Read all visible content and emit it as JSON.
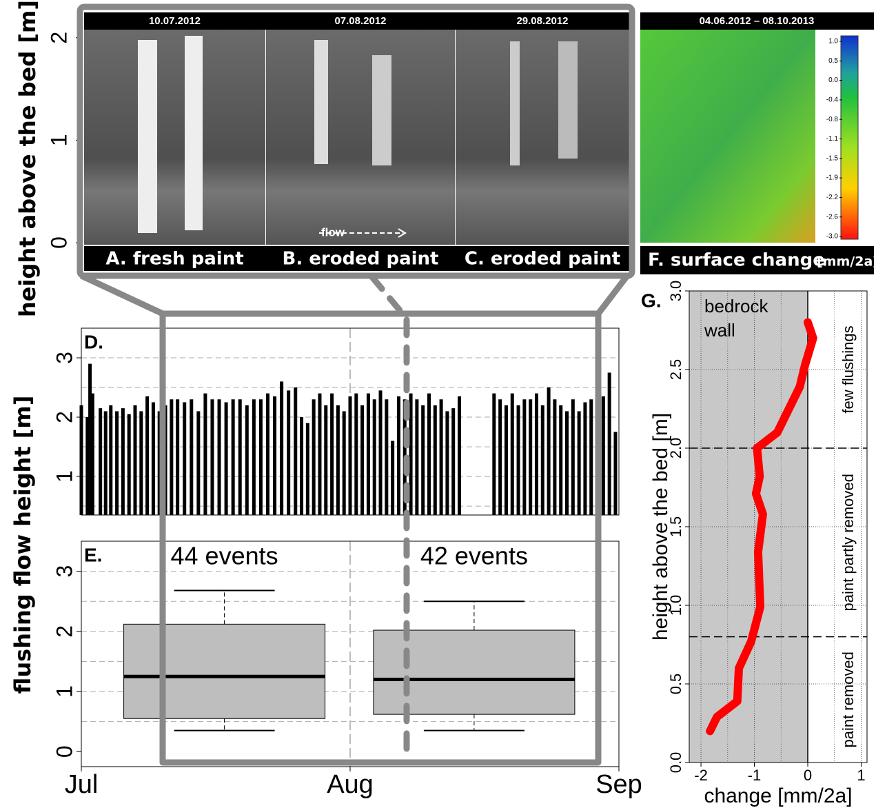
{
  "photos": {
    "ylabel": "height above the bed [m]",
    "ylim": [
      0,
      2.2
    ],
    "yticks": [
      0,
      1,
      2
    ],
    "panels": [
      {
        "date": "10.07.2012",
        "caption": "A. fresh paint"
      },
      {
        "date": "07.08.2012",
        "caption": "B. eroded paint"
      },
      {
        "date": "29.08.2012",
        "caption": "C. eroded paint"
      }
    ],
    "flow_label": "flow",
    "surface": {
      "date": "04.06.2012 – 08.10.2013",
      "caption": "F. surface change",
      "caption_unit": "[mm/2a]",
      "colorbar_ticks": [
        {
          "value": 1.0,
          "label": "1.0"
        },
        0.5,
        {
          "value": 0.0,
          "label": "0.0"
        },
        -0.4,
        -0.8,
        -1.1,
        -1.5,
        -1.9,
        -2.2,
        -2.6,
        {
          "value": -3.0,
          "label": "-3.0"
        }
      ]
    }
  },
  "chart_data": [
    {
      "type": "bar",
      "title": "D.",
      "ylabel": "flushing flow height [m]",
      "color": "#000000",
      "x": [
        0,
        0.7,
        1.0,
        1.3,
        2.2,
        2.8,
        3.4,
        4.1,
        4.8,
        5.5,
        6.2,
        6.9,
        7.6,
        8.3,
        9.0,
        9.7,
        10.4,
        11.1,
        11.9,
        12.7,
        13.5,
        14.3,
        15.1,
        15.9,
        16.7,
        17.5,
        18.3,
        19.1,
        19.9,
        20.7,
        21.5,
        22.3,
        23.1,
        23.9,
        24.7,
        25.4,
        26.1,
        26.8,
        27.5,
        28.2,
        28.9,
        29.6,
        30.3,
        31.0,
        31.7,
        32.4,
        33.1,
        33.8,
        34.5,
        35.2,
        35.9,
        36.6,
        37.3,
        38.0,
        38.7,
        39.4,
        40.1,
        40.8,
        41.5,
        42.2,
        42.9,
        43.6,
        47.6,
        48.3,
        49.0,
        49.7,
        50.4,
        51.1,
        51.8,
        52.5,
        53.2,
        53.9,
        54.6,
        55.3,
        56.0,
        56.7,
        57.4,
        58.1,
        58.8,
        59.5,
        60.2,
        60.9,
        61.6
      ],
      "values": [
        2.2,
        2.0,
        2.9,
        2.4,
        2.15,
        2.1,
        2.2,
        2.1,
        2.15,
        2.05,
        2.2,
        2.1,
        2.35,
        2.25,
        2.1,
        2.2,
        2.3,
        2.3,
        2.25,
        2.3,
        2.1,
        2.4,
        2.3,
        2.3,
        2.25,
        2.3,
        2.3,
        2.2,
        2.3,
        2.3,
        2.4,
        2.35,
        2.6,
        2.45,
        2.5,
        2.0,
        1.9,
        2.3,
        2.4,
        2.2,
        2.4,
        2.2,
        2.1,
        2.35,
        2.4,
        2.2,
        2.4,
        2.3,
        2.45,
        2.3,
        1.6,
        2.35,
        2.3,
        2.4,
        2.3,
        2.2,
        2.4,
        2.2,
        2.3,
        2.1,
        2.15,
        2.35,
        2.4,
        2.3,
        2.2,
        2.4,
        2.2,
        2.3,
        2.3,
        2.4,
        2.2,
        2.5,
        2.3,
        2.2,
        2.1,
        2.3,
        2.1,
        2.25,
        2.3,
        2.2,
        2.35,
        2.75,
        1.75
      ],
      "xlim": [
        0,
        62
      ],
      "ylim": [
        0.35,
        3.5
      ],
      "yticks": [
        1,
        2,
        3
      ],
      "grid_lines": [
        0.5,
        1,
        1.5,
        2,
        2.5,
        3
      ],
      "xgrid": [
        31
      ]
    },
    {
      "type": "box",
      "title": "E.",
      "color": "#bebebe",
      "boxes": [
        {
          "label": "44 events",
          "x": 16.5,
          "whisker_low": 0.35,
          "q1": 0.55,
          "median": 1.25,
          "q3": 2.12,
          "whisker_high": 2.68
        },
        {
          "label": "42 events",
          "x": 45.3,
          "whisker_low": 0.35,
          "q1": 0.62,
          "median": 1.2,
          "q3": 2.02,
          "whisker_high": 2.5
        }
      ],
      "xlim": [
        0,
        62
      ],
      "ylim": [
        -0.25,
        3.5
      ],
      "yticks": [
        0,
        1,
        2,
        3
      ],
      "grid_lines": [
        0.5,
        1,
        1.5,
        2,
        2.5,
        3
      ],
      "xticks": [
        {
          "value": 0,
          "label": "Jul"
        },
        {
          "value": 31,
          "label": "Aug"
        },
        {
          "value": 62,
          "label": "Sep"
        }
      ]
    },
    {
      "type": "line",
      "title": "G.",
      "color": "#ff0000",
      "xlabel": "change [mm/2a]",
      "ylabel": "height above the bed [m]",
      "x": [
        -1.83,
        -1.7,
        -1.32,
        -1.29,
        -1.06,
        -0.89,
        -0.93,
        -0.84,
        -0.97,
        -0.9,
        -0.95,
        -0.57,
        -0.15,
        -0.05,
        0.1,
        0.0
      ],
      "values": [
        0.2,
        0.29,
        0.39,
        0.6,
        0.77,
        0.99,
        1.34,
        1.58,
        1.71,
        1.82,
        2.0,
        2.1,
        2.39,
        2.53,
        2.7,
        2.8
      ],
      "xlim": [
        -2.22,
        1.11
      ],
      "ylim": [
        0,
        3.0
      ],
      "xticks": [
        -2,
        -1,
        0,
        1
      ],
      "yticks": [
        {
          "value": 0,
          "label": "0.0"
        },
        {
          "value": 0.5,
          "label": "0.5"
        },
        {
          "value": 1,
          "label": "1.0"
        },
        {
          "value": 1.5,
          "label": "1.5"
        },
        {
          "value": 2,
          "label": "2.0"
        },
        {
          "value": 2.5,
          "label": "2.5"
        },
        {
          "value": 3,
          "label": "3.0"
        }
      ],
      "x_grid": [
        -1.5,
        -0.5,
        0.5
      ],
      "shade_to": 0,
      "shaded_label": [
        "bedrock",
        "wall"
      ],
      "zone_bounds": [
        0.8,
        2.0
      ],
      "zones": [
        "paint removed",
        "paint partly removed",
        "few flushings"
      ]
    }
  ]
}
